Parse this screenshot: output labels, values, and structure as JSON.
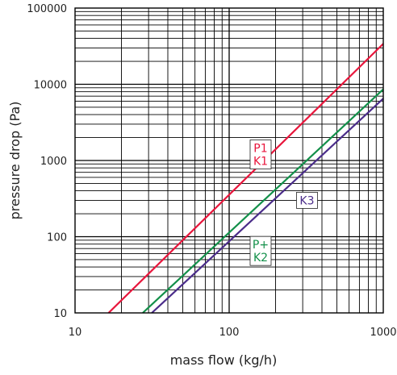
{
  "chart_data": {
    "type": "line",
    "xlabel": "mass flow (kg/h)",
    "ylabel": "pressure drop (Pa)",
    "x_scale": "log",
    "y_scale": "log",
    "xlim": [
      10,
      1000
    ],
    "ylim": [
      10,
      100000
    ],
    "x_ticks": [
      {
        "value": 10,
        "label": "10"
      },
      {
        "value": 100,
        "label": "100"
      },
      {
        "value": 1000,
        "label": "1000"
      }
    ],
    "y_ticks": [
      {
        "value": 10,
        "label": "10"
      },
      {
        "value": 100,
        "label": "100"
      },
      {
        "value": 1000,
        "label": "1000"
      },
      {
        "value": 10000,
        "label": "10000"
      },
      {
        "value": 100000,
        "label": "100000"
      }
    ],
    "grid": true,
    "series": [
      {
        "color": "#e8163c",
        "x": [
          16.5,
          1000
        ],
        "y": [
          10,
          34000
        ]
      },
      {
        "color": "#13904a",
        "x": [
          27.5,
          1000
        ],
        "y": [
          10,
          8600
        ]
      },
      {
        "color": "#4b2d8a",
        "x": [
          31.5,
          1000
        ],
        "y": [
          10,
          6500
        ]
      }
    ],
    "annotations": [
      {
        "lines": [
          "P1",
          "K1"
        ],
        "color": "#e8163c",
        "x": 160,
        "y": 1200
      },
      {
        "lines": [
          "K3"
        ],
        "color": "#4b2d8a",
        "x": 320,
        "y": 300
      },
      {
        "lines": [
          "P+",
          "K2"
        ],
        "color": "#13904a",
        "x": 160,
        "y": 65
      }
    ]
  }
}
